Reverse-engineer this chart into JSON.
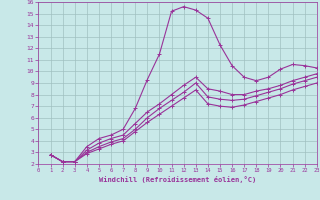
{
  "background_color": "#c8e8e8",
  "grid_color": "#a0c0c0",
  "line_color": "#993399",
  "marker": "+",
  "marker_size": 3,
  "line_width": 0.8,
  "xlabel": "Windchill (Refroidissement éolien,°C)",
  "xlim": [
    0,
    23
  ],
  "ylim": [
    2,
    16
  ],
  "yticks": [
    2,
    3,
    4,
    5,
    6,
    7,
    8,
    9,
    10,
    11,
    12,
    13,
    14,
    15,
    16
  ],
  "xticks": [
    0,
    1,
    2,
    3,
    4,
    5,
    6,
    7,
    8,
    9,
    10,
    11,
    12,
    13,
    14,
    15,
    16,
    17,
    18,
    19,
    20,
    21,
    22,
    23
  ],
  "series": [
    {
      "x": [
        1,
        2,
        3,
        4,
        5,
        6,
        7,
        8,
        9,
        10,
        11,
        12,
        13,
        14,
        15,
        16,
        17,
        18,
        19,
        20,
        21,
        22,
        23
      ],
      "y": [
        2.8,
        2.2,
        2.2,
        3.5,
        4.2,
        4.5,
        5.0,
        6.8,
        9.3,
        11.5,
        15.2,
        15.6,
        15.3,
        14.6,
        12.3,
        10.5,
        9.5,
        9.2,
        9.5,
        10.2,
        10.6,
        10.5,
        10.3
      ]
    },
    {
      "x": [
        1,
        2,
        3,
        4,
        5,
        6,
        7,
        8,
        9,
        10,
        11,
        12,
        13,
        14,
        15,
        16,
        17,
        18,
        19,
        20,
        21,
        22,
        23
      ],
      "y": [
        2.8,
        2.2,
        2.2,
        3.2,
        3.8,
        4.2,
        4.5,
        5.5,
        6.5,
        7.2,
        8.0,
        8.8,
        9.5,
        8.5,
        8.3,
        8.0,
        8.0,
        8.3,
        8.5,
        8.8,
        9.2,
        9.5,
        9.8
      ]
    },
    {
      "x": [
        1,
        2,
        3,
        4,
        5,
        6,
        7,
        8,
        9,
        10,
        11,
        12,
        13,
        14,
        15,
        16,
        17,
        18,
        19,
        20,
        21,
        22,
        23
      ],
      "y": [
        2.8,
        2.2,
        2.2,
        3.0,
        3.5,
        3.9,
        4.2,
        5.0,
        6.0,
        6.8,
        7.5,
        8.2,
        9.0,
        7.8,
        7.6,
        7.5,
        7.6,
        7.9,
        8.2,
        8.5,
        8.9,
        9.2,
        9.5
      ]
    },
    {
      "x": [
        1,
        2,
        3,
        4,
        5,
        6,
        7,
        8,
        9,
        10,
        11,
        12,
        13,
        14,
        15,
        16,
        17,
        18,
        19,
        20,
        21,
        22,
        23
      ],
      "y": [
        2.8,
        2.2,
        2.2,
        2.9,
        3.3,
        3.7,
        4.0,
        4.8,
        5.6,
        6.3,
        7.0,
        7.7,
        8.4,
        7.2,
        7.0,
        6.9,
        7.1,
        7.4,
        7.7,
        8.0,
        8.4,
        8.7,
        9.0
      ]
    }
  ]
}
